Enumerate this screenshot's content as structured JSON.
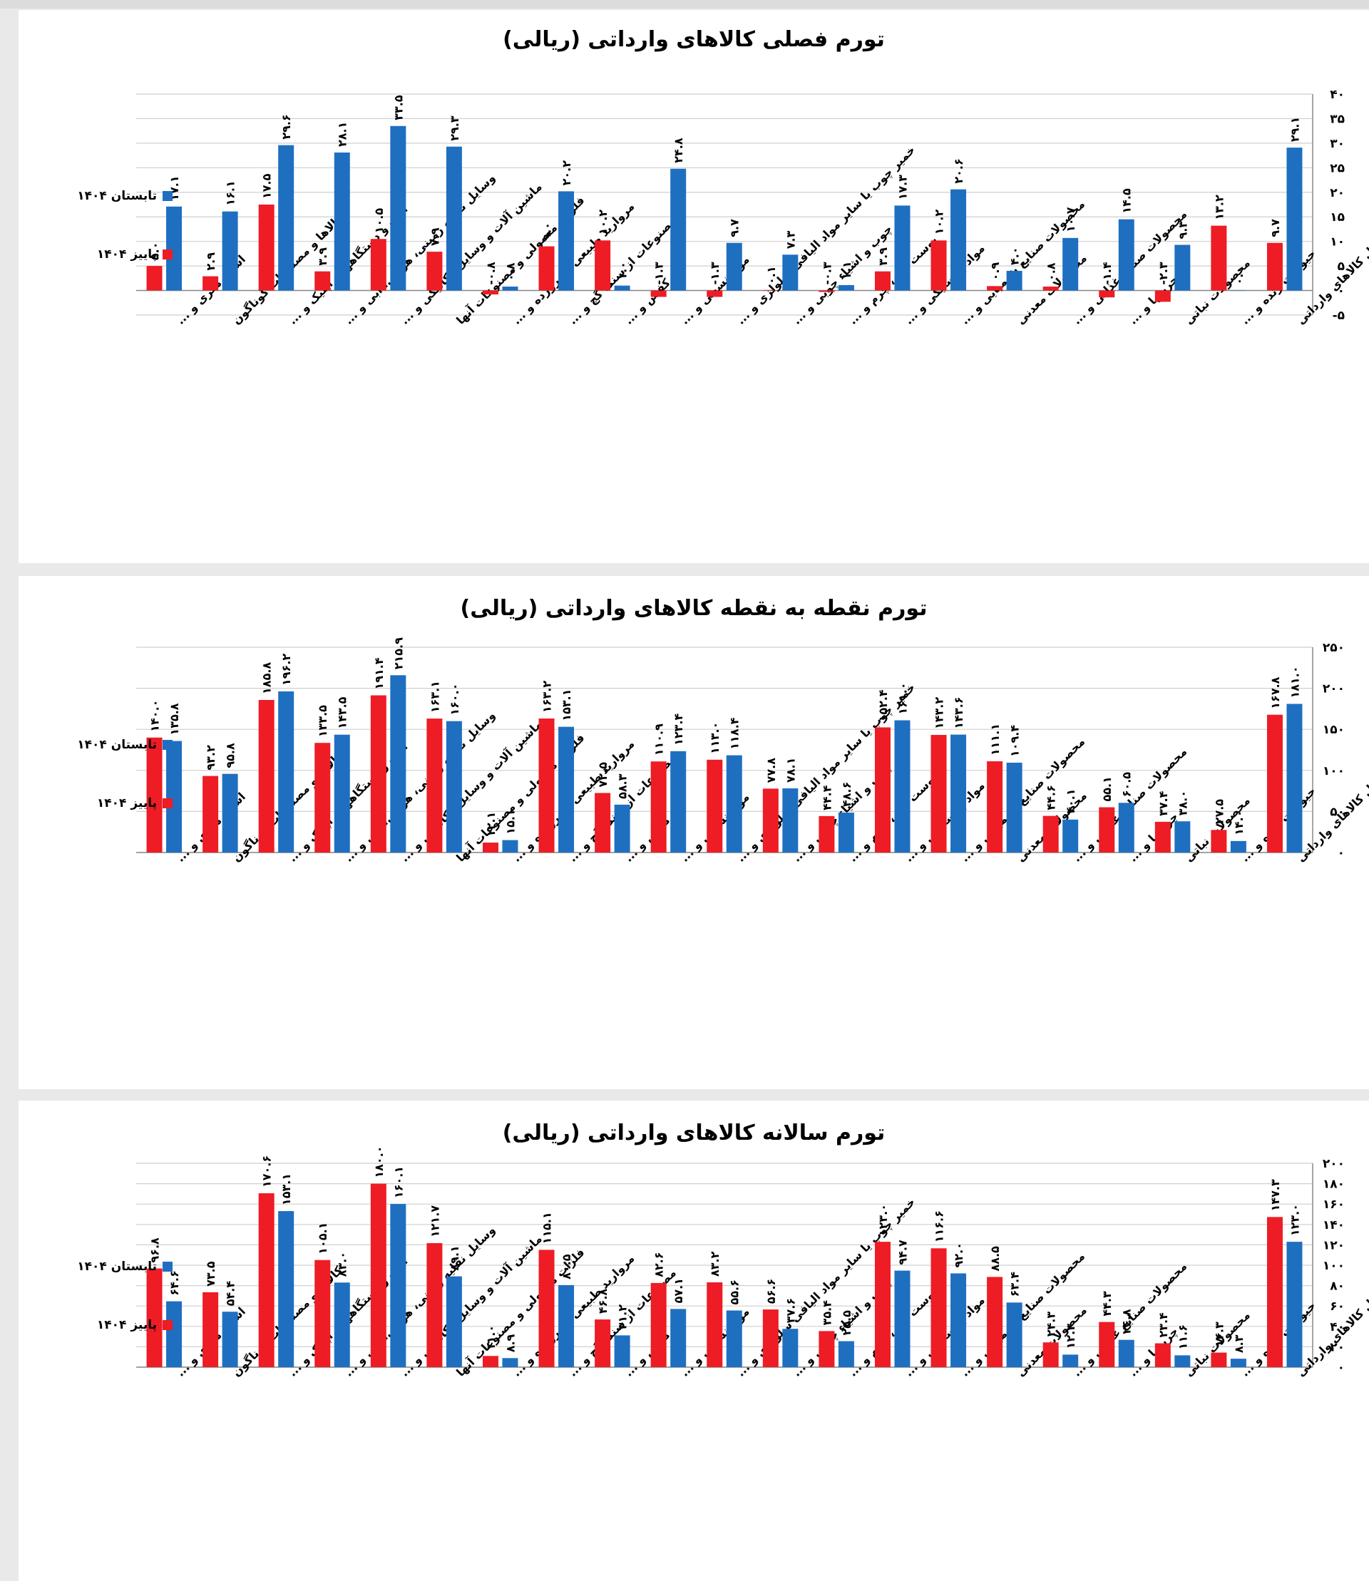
{
  "colors": {
    "summer": "#1f6fc1",
    "autumn": "#ee1c25",
    "grid": "#cfcfcf",
    "axis": "#888888"
  },
  "legend": {
    "summer": "تابستان ۱۴۰۴",
    "autumn": "پاییز ۱۴۰۴"
  },
  "categories": [
    "اشیاء هنری و ...",
    "کالاها و مصنوعات گوناگون",
    "آلات و دستگاههای اپتیک و ...",
    "وسایل نقلیه زمینی، هوایی، آبی و ...",
    "ماشین آلات و وسایل مکانیکی و ...",
    "فلزات معمولی و مصنوعات آنها",
    "مروارید طبیعی یا پرورده و ...",
    "مصنوعات از سنگ گچ و ...",
    "کفش و ...",
    "مواد نسجی و ...",
    "خمیر چوب یا سایر مواد الیافی سلولزی و ...",
    "چوب و اشیاء چوبی و ...",
    "پوست خام، چرم و ...",
    "مواد پلاستیکی و ...",
    "محصولات صنایع شیمیایی و ...",
    "محصولات معدنی",
    "محصولات صنایع غذایی و ...",
    "چربیها و ...",
    "محصولات نباتی",
    "حیوانات زنده و ...",
    "کل کالاهای وارداتی"
  ],
  "chart_data": [
    {
      "type": "bar",
      "title": "تورم فصلی کالاهای وارداتی (ریالی)",
      "ylim": [
        -5,
        40
      ],
      "yticks": [
        -5,
        0,
        5,
        10,
        15,
        20,
        25,
        30,
        35,
        40
      ],
      "ytick_labels": [
        "-۵",
        "۰",
        "۵",
        "۱۰",
        "۱۵",
        "۲۰",
        "۲۵",
        "۳۰",
        "۳۵",
        "۴۰"
      ],
      "series": [
        {
          "name": "پاییز ۱۴۰۴",
          "values": [
            5.0,
            2.9,
            17.5,
            3.9,
            10.5,
            7.9,
            -0.8,
            9.0,
            10.2,
            -1.3,
            -1.3,
            0.1,
            -0.3,
            3.9,
            10.2,
            0.9,
            0.8,
            -1.4,
            -2.3,
            13.2,
            9.7
          ],
          "labels": [
            "۵.۰",
            "۲.۹",
            "۱۷.۵",
            "۳.۹",
            "۱۰.۵",
            "۷.۹",
            "-۰.۸",
            "۹.۰",
            "۱۰.۲",
            "-۱.۳",
            "-۱.۳",
            "۰.۱",
            "-۰.۳",
            "۳.۹",
            "۱۰.۲",
            "۰.۹",
            "۰.۸",
            "-۱.۴",
            "-۲.۳",
            "۱۳.۲",
            "۹.۷"
          ]
        },
        {
          "name": "تابستان ۱۴۰۴",
          "values": [
            17.1,
            16.1,
            29.6,
            28.1,
            33.5,
            29.3,
            0.8,
            20.2,
            1.0,
            24.8,
            9.7,
            7.3,
            1.1,
            17.3,
            20.6,
            4.0,
            10.7,
            14.5,
            9.3,
            0.0,
            29.1
          ],
          "labels": [
            "۱۷.۱",
            "۱۶.۱",
            "۲۹.۶",
            "۲۸.۱",
            "۳۳.۵",
            "۲۹.۳",
            "۰.۸",
            "۲۰.۲",
            "۱.۰",
            "۲۴.۸",
            "۹.۷",
            "۷.۳",
            "۱.۱",
            "۱۷.۳",
            "۲۰.۶",
            "۴.۰",
            "۱۰.۷",
            "۱۴.۵",
            "۹.۳",
            "۰.۰",
            "۲۹.۱"
          ]
        }
      ]
    },
    {
      "type": "bar",
      "title": "تورم نقطه به نقطه کالاهای وارداتی (ریالی)",
      "ylim": [
        0,
        250
      ],
      "yticks": [
        0,
        50,
        100,
        150,
        200,
        250
      ],
      "ytick_labels": [
        "۰",
        "۵۰",
        "۱۰۰",
        "۱۵۰",
        "۲۰۰",
        "۲۵۰"
      ],
      "series": [
        {
          "name": "پاییز ۱۴۰۴",
          "values": [
            140.0,
            93.2,
            185.8,
            133.5,
            191.4,
            163.1,
            12.1,
            163.2,
            72.5,
            110.9,
            113.0,
            77.8,
            44.4,
            152.4,
            143.2,
            111.1,
            44.6,
            55.1,
            37.4,
            27.5,
            167.8
          ],
          "labels": [
            "۱۴۰.۰",
            "۹۳.۲",
            "۱۸۵.۸",
            "۱۳۳.۵",
            "۱۹۱.۴",
            "۱۶۳.۱",
            "۱۲.۱",
            "۱۶۳.۲",
            "۷۲.۵",
            "۱۱۰.۹",
            "۱۱۳.۰",
            "۷۷.۸",
            "۴۴.۴",
            "۱۵۲.۴",
            "۱۴۳.۲",
            "۱۱۱.۱",
            "۴۴.۶",
            "۵۵.۱",
            "۳۷.۴",
            "۲۷.۵",
            "۱۶۷.۸"
          ]
        },
        {
          "name": "تابستان ۱۴۰۴",
          "values": [
            135.8,
            95.8,
            196.2,
            143.5,
            215.9,
            160.0,
            15.1,
            153.1,
            58.3,
            123.4,
            118.4,
            78.1,
            48.6,
            161.0,
            143.6,
            109.4,
            40.1,
            60.5,
            38.0,
            14.0,
            181.0
          ],
          "labels": [
            "۱۳۵.۸",
            "۹۵.۸",
            "۱۹۶.۲",
            "۱۴۳.۵",
            "۲۱۵.۹",
            "۱۶۰.۰",
            "۱۵.۱",
            "۱۵۳.۱",
            "۵۸.۳",
            "۱۲۳.۴",
            "۱۱۸.۴",
            "۷۸.۱",
            "۴۸.۶",
            "۱۶۱.۰",
            "۱۴۳.۶",
            "۱۰۹.۴",
            "۴۰.۱",
            "۶۰.۵",
            "۳۸.۰",
            "۱۴.۰",
            "۱۸۱.۰"
          ]
        }
      ]
    },
    {
      "type": "bar",
      "title": "تورم سالانه کالاهای وارداتی (ریالی)",
      "ylim": [
        0,
        200
      ],
      "yticks": [
        0,
        20,
        40,
        60,
        80,
        100,
        120,
        140,
        160,
        180,
        200
      ],
      "ytick_labels": [
        "۰",
        "۲۰",
        "۴۰",
        "۶۰",
        "۸۰",
        "۱۰۰",
        "۱۲۰",
        "۱۴۰",
        "۱۶۰",
        "۱۸۰",
        "۲۰۰"
      ],
      "series": [
        {
          "name": "پاییز ۱۴۰۴",
          "values": [
            96.8,
            73.5,
            170.6,
            105.1,
            180.0,
            121.7,
            11.0,
            115.1,
            46.8,
            82.6,
            83.2,
            56.6,
            35.4,
            123.0,
            116.6,
            88.5,
            24.3,
            44.3,
            23.4,
            14.3,
            147.3
          ],
          "labels": [
            "۹۶.۸",
            "۷۳.۵",
            "۱۷۰.۶",
            "۱۰۵.۱",
            "۱۸۰.۰",
            "۱۲۱.۷",
            "۱۱.۰",
            "۱۱۵.۱",
            "۴۶.۸",
            "۸۲.۶",
            "۸۳.۲",
            "۵۶.۶",
            "۳۵.۴",
            "۱۲۳.۰",
            "۱۱۶.۶",
            "۸۸.۵",
            "۲۴.۳",
            "۴۴.۳",
            "۲۳.۴",
            "۱۴.۳",
            "۱۴۷.۳"
          ]
        },
        {
          "name": "تابستان ۱۴۰۴",
          "values": [
            64.6,
            54.4,
            153.1,
            83.0,
            160.1,
            89.1,
            8.9,
            80.5,
            31.2,
            57.1,
            55.6,
            37.6,
            25.5,
            94.7,
            92.0,
            63.4,
            12.3,
            26.8,
            11.6,
            8.3,
            123.0
          ],
          "labels": [
            "۶۴.۶",
            "۵۴.۴",
            "۱۵۳.۱",
            "۸۳.۰",
            "۱۶۰.۱",
            "۸۹.۱",
            "۸.۹",
            "۸۰.۵",
            "۳۱.۲",
            "۵۷.۱",
            "۵۵.۶",
            "۳۷.۶",
            "۲۵.۵",
            "۹۴.۷",
            "۹۲.۰",
            "۶۳.۴",
            "۱۲.۳",
            "۲۶.۸",
            "۱۱.۶",
            "۸.۳",
            "۱۲۳.۰"
          ]
        }
      ]
    }
  ]
}
